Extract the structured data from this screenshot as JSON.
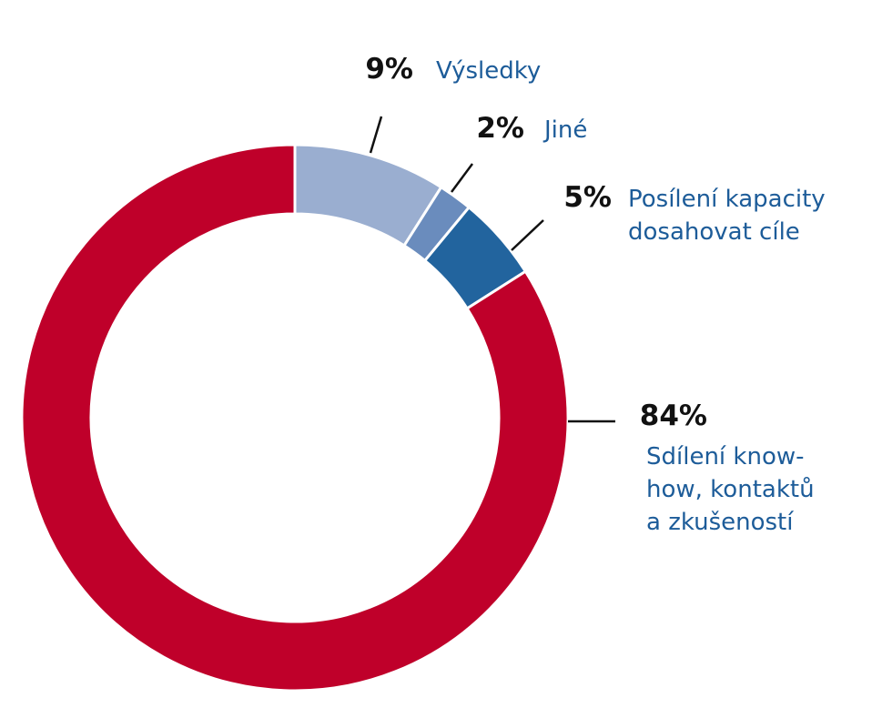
{
  "chart_data": {
    "type": "pie",
    "donut": true,
    "start_angle_deg": 0,
    "direction": "clockwise",
    "colors": {
      "label_text": "#1d5c99",
      "value_text": "#111111",
      "leader_line": "#111111",
      "segment_border": "#ffffff"
    },
    "slices": [
      {
        "label_lines": [
          "Výsledky"
        ],
        "value": 9,
        "value_label": "9%",
        "color": "#9aaed0"
      },
      {
        "label_lines": [
          "Jiné"
        ],
        "value": 2,
        "value_label": "2%",
        "color": "#6a8cbd"
      },
      {
        "label_lines": [
          "Posílení kapacity",
          "dosahovat cíle"
        ],
        "value": 5,
        "value_label": "5%",
        "color": "#22649e"
      },
      {
        "label_lines": [
          "Sdílení know-",
          "how, kontaktů",
          "a zkušeností"
        ],
        "value": 84,
        "value_label": "84%",
        "color": "#bf002a"
      }
    ]
  }
}
